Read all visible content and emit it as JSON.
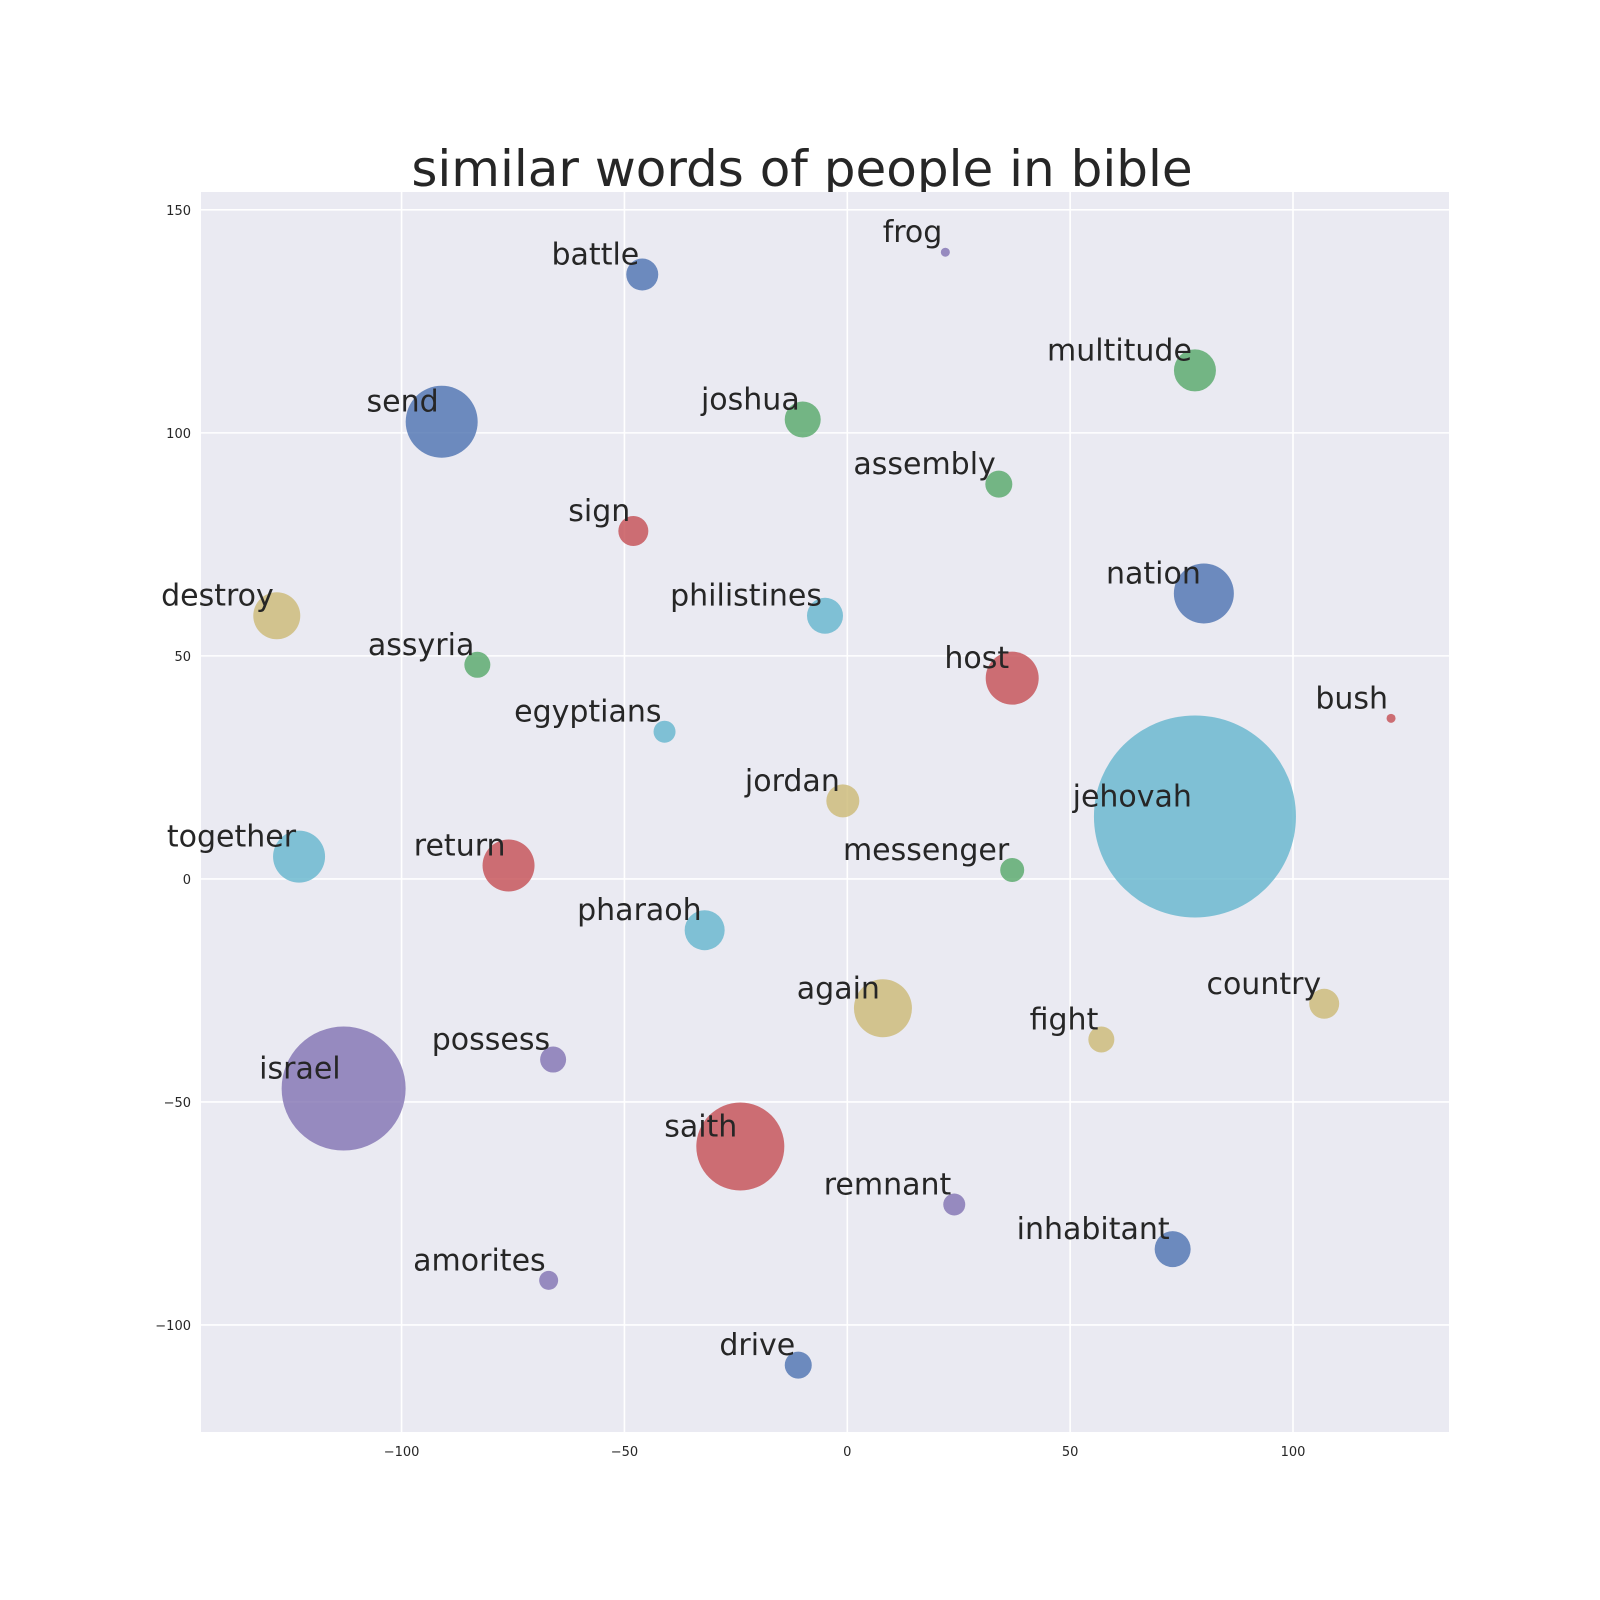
{
  "chart_data": {
    "type": "scatter",
    "title": "similar words of people in bible",
    "xlabel": "",
    "ylabel": "",
    "xlim": [
      -145,
      135
    ],
    "ylim": [
      -124,
      154
    ],
    "grid": true,
    "xticks": [
      -100,
      -50,
      0,
      50,
      100
    ],
    "yticks": [
      -100,
      -50,
      0,
      50,
      100,
      150
    ],
    "xtick_labels": [
      "−100",
      "−50",
      "0",
      "50",
      "100"
    ],
    "ytick_labels": [
      "−100",
      "−50",
      "0",
      "50",
      "100",
      "150"
    ],
    "colors": {
      "blue": "#4c72b0",
      "green": "#55a868",
      "red": "#c44e52",
      "purple": "#8172b2",
      "yellow": "#ccb974",
      "cyan": "#64b5cd",
      "background": "#eaeaf2"
    },
    "points": [
      {
        "label": "battle",
        "x": -46,
        "y": 135.5,
        "r": 16,
        "color": "blue"
      },
      {
        "label": "frog",
        "x": 22,
        "y": 140.5,
        "r": 4.5,
        "color": "purple"
      },
      {
        "label": "multitude",
        "x": 78,
        "y": 114,
        "r": 21,
        "color": "green"
      },
      {
        "label": "send",
        "x": -91,
        "y": 102.5,
        "r": 36,
        "color": "blue"
      },
      {
        "label": "joshua",
        "x": -10,
        "y": 103,
        "r": 18,
        "color": "green"
      },
      {
        "label": "assembly",
        "x": 34,
        "y": 88.5,
        "r": 13.5,
        "color": "green"
      },
      {
        "label": "sign",
        "x": -48,
        "y": 78,
        "r": 15,
        "color": "red"
      },
      {
        "label": "destroy",
        "x": -128,
        "y": 59,
        "r": 23.5,
        "color": "yellow"
      },
      {
        "label": "philistines",
        "x": -5,
        "y": 59,
        "r": 18,
        "color": "cyan"
      },
      {
        "label": "nation",
        "x": 80,
        "y": 64,
        "r": 30,
        "color": "blue"
      },
      {
        "label": "assyria",
        "x": -83,
        "y": 48,
        "r": 13,
        "color": "green"
      },
      {
        "label": "host",
        "x": 37,
        "y": 45,
        "r": 26.5,
        "color": "red"
      },
      {
        "label": "egyptians",
        "x": -41,
        "y": 33,
        "r": 11,
        "color": "cyan"
      },
      {
        "label": "bush",
        "x": 122,
        "y": 36,
        "r": 4.5,
        "color": "red"
      },
      {
        "label": "jordan",
        "x": -1,
        "y": 17.5,
        "r": 16.5,
        "color": "yellow"
      },
      {
        "label": "jehovah",
        "x": 78,
        "y": 14,
        "r": 101,
        "color": "cyan"
      },
      {
        "label": "together",
        "x": -123,
        "y": 5,
        "r": 26,
        "color": "cyan"
      },
      {
        "label": "return",
        "x": -76,
        "y": 3,
        "r": 26,
        "color": "red"
      },
      {
        "label": "messenger",
        "x": 37,
        "y": 2,
        "r": 12,
        "color": "green"
      },
      {
        "label": "pharaoh",
        "x": -32,
        "y": -11.5,
        "r": 20,
        "color": "cyan"
      },
      {
        "label": "again",
        "x": 8,
        "y": -29,
        "r": 29,
        "color": "yellow"
      },
      {
        "label": "country",
        "x": 107,
        "y": -28,
        "r": 15,
        "color": "yellow"
      },
      {
        "label": "fight",
        "x": 57,
        "y": -36,
        "r": 13,
        "color": "yellow"
      },
      {
        "label": "possess",
        "x": -66,
        "y": -40.5,
        "r": 13,
        "color": "purple"
      },
      {
        "label": "israel",
        "x": -113,
        "y": -47,
        "r": 62,
        "color": "purple"
      },
      {
        "label": "saith",
        "x": -24,
        "y": -60,
        "r": 44,
        "color": "red"
      },
      {
        "label": "remnant",
        "x": 24,
        "y": -73,
        "r": 11,
        "color": "purple"
      },
      {
        "label": "inhabitant",
        "x": 73,
        "y": -83,
        "r": 18,
        "color": "blue"
      },
      {
        "label": "amorites",
        "x": -67,
        "y": -90,
        "r": 9.5,
        "color": "purple"
      },
      {
        "label": "drive",
        "x": -11,
        "y": -109,
        "r": 13.5,
        "color": "blue"
      }
    ]
  }
}
